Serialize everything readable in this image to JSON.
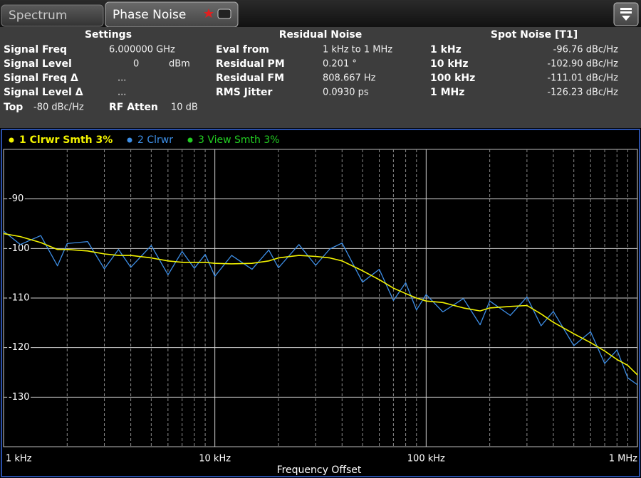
{
  "tabs": [
    "Spectrum",
    "Phase Noise"
  ],
  "settings": {
    "title": "Settings",
    "rows": [
      [
        "Signal Freq",
        "6.000000 GHz"
      ],
      [
        "Signal Level",
        "0",
        "dBm"
      ],
      [
        "Signal Freq Δ",
        "..."
      ],
      [
        "Signal Level Δ",
        "..."
      ],
      [
        "Top",
        "-80 dBc/Hz",
        "RF Atten",
        "10 dB"
      ]
    ]
  },
  "residual_noise": {
    "title": "Residual Noise",
    "rows": [
      [
        "Eval from",
        "1 kHz to 1 MHz"
      ],
      [
        "Residual PM",
        "0.201 °"
      ],
      [
        "Residual FM",
        "808.667 Hz"
      ],
      [
        "RMS Jitter",
        "0.0930 ps"
      ]
    ]
  },
  "spot_noise": {
    "title": "Spot Noise [T1]",
    "rows": [
      [
        "1 kHz",
        "-96.76 dBc/Hz"
      ],
      [
        "10 kHz",
        "-102.90 dBc/Hz"
      ],
      [
        "100 kHz",
        "-111.01 dBc/Hz"
      ],
      [
        "1 MHz",
        "-126.23 dBc/Hz"
      ]
    ]
  },
  "chart_data": {
    "type": "line",
    "x_label": "Frequency Offset",
    "x_scale": "log",
    "x": [
      1000,
      1200,
      1500,
      1800,
      2000,
      2500,
      3000,
      3500,
      4000,
      5000,
      6000,
      7000,
      8000,
      9000,
      10000,
      12000,
      15000,
      18000,
      20000,
      25000,
      30000,
      35000,
      40000,
      50000,
      60000,
      70000,
      80000,
      90000,
      100000,
      120000,
      150000,
      180000,
      200000,
      250000,
      300000,
      350000,
      400000,
      500000,
      600000,
      700000,
      800000,
      900000,
      1000000
    ],
    "series": [
      {
        "name": "1 Clrwr Smth 3%",
        "color": "#f2f200",
        "values": [
          -97.0,
          -97.6,
          -98.8,
          -100.2,
          -100.2,
          -100.5,
          -101.1,
          -101.4,
          -101.4,
          -101.9,
          -102.5,
          -102.8,
          -102.8,
          -102.8,
          -103.0,
          -103.1,
          -103.0,
          -102.5,
          -101.9,
          -101.4,
          -101.6,
          -101.9,
          -102.5,
          -104.5,
          -106.3,
          -108.0,
          -109.1,
          -110.0,
          -110.6,
          -110.9,
          -112.0,
          -112.6,
          -112.0,
          -111.7,
          -111.5,
          -113.2,
          -114.9,
          -117.2,
          -119.0,
          -120.7,
          -122.4,
          -123.6,
          -125.5
        ]
      },
      {
        "name": "2 Clrwr",
        "color": "#3d8ee6",
        "values": [
          -96.5,
          -99.2,
          -97.4,
          -103.5,
          -99.0,
          -98.6,
          -104.1,
          -100.2,
          -103.8,
          -99.4,
          -105.3,
          -100.6,
          -104.0,
          -101.2,
          -105.6,
          -101.4,
          -104.2,
          -100.3,
          -103.9,
          -99.2,
          -103.4,
          -100.1,
          -98.9,
          -106.8,
          -104.2,
          -110.5,
          -106.9,
          -112.4,
          -109.3,
          -112.8,
          -110.1,
          -115.4,
          -110.6,
          -113.5,
          -109.8,
          -115.6,
          -112.7,
          -119.6,
          -116.8,
          -123.2,
          -120.5,
          -126.1,
          -127.5
        ]
      },
      {
        "name": "3 View Smth 3%",
        "color": "#22cc22"
      }
    ],
    "xlim": [
      1000,
      1000000
    ],
    "xticks": [
      {
        "value": 1000,
        "label": "1 kHz"
      },
      {
        "value": 10000,
        "label": "10 kHz"
      },
      {
        "value": 100000,
        "label": "100 kHz"
      },
      {
        "value": 1000000,
        "label": "1 MHz"
      }
    ],
    "xgrid_minor": [
      2000,
      3000,
      4000,
      5000,
      6000,
      7000,
      8000,
      9000,
      20000,
      30000,
      40000,
      50000,
      60000,
      70000,
      80000,
      90000,
      200000,
      300000,
      400000,
      500000,
      600000,
      700000,
      800000,
      900000
    ],
    "ylim": [
      -140,
      -80
    ],
    "yticks": [
      -90,
      -100,
      -110,
      -120,
      -130
    ],
    "grid": true
  }
}
